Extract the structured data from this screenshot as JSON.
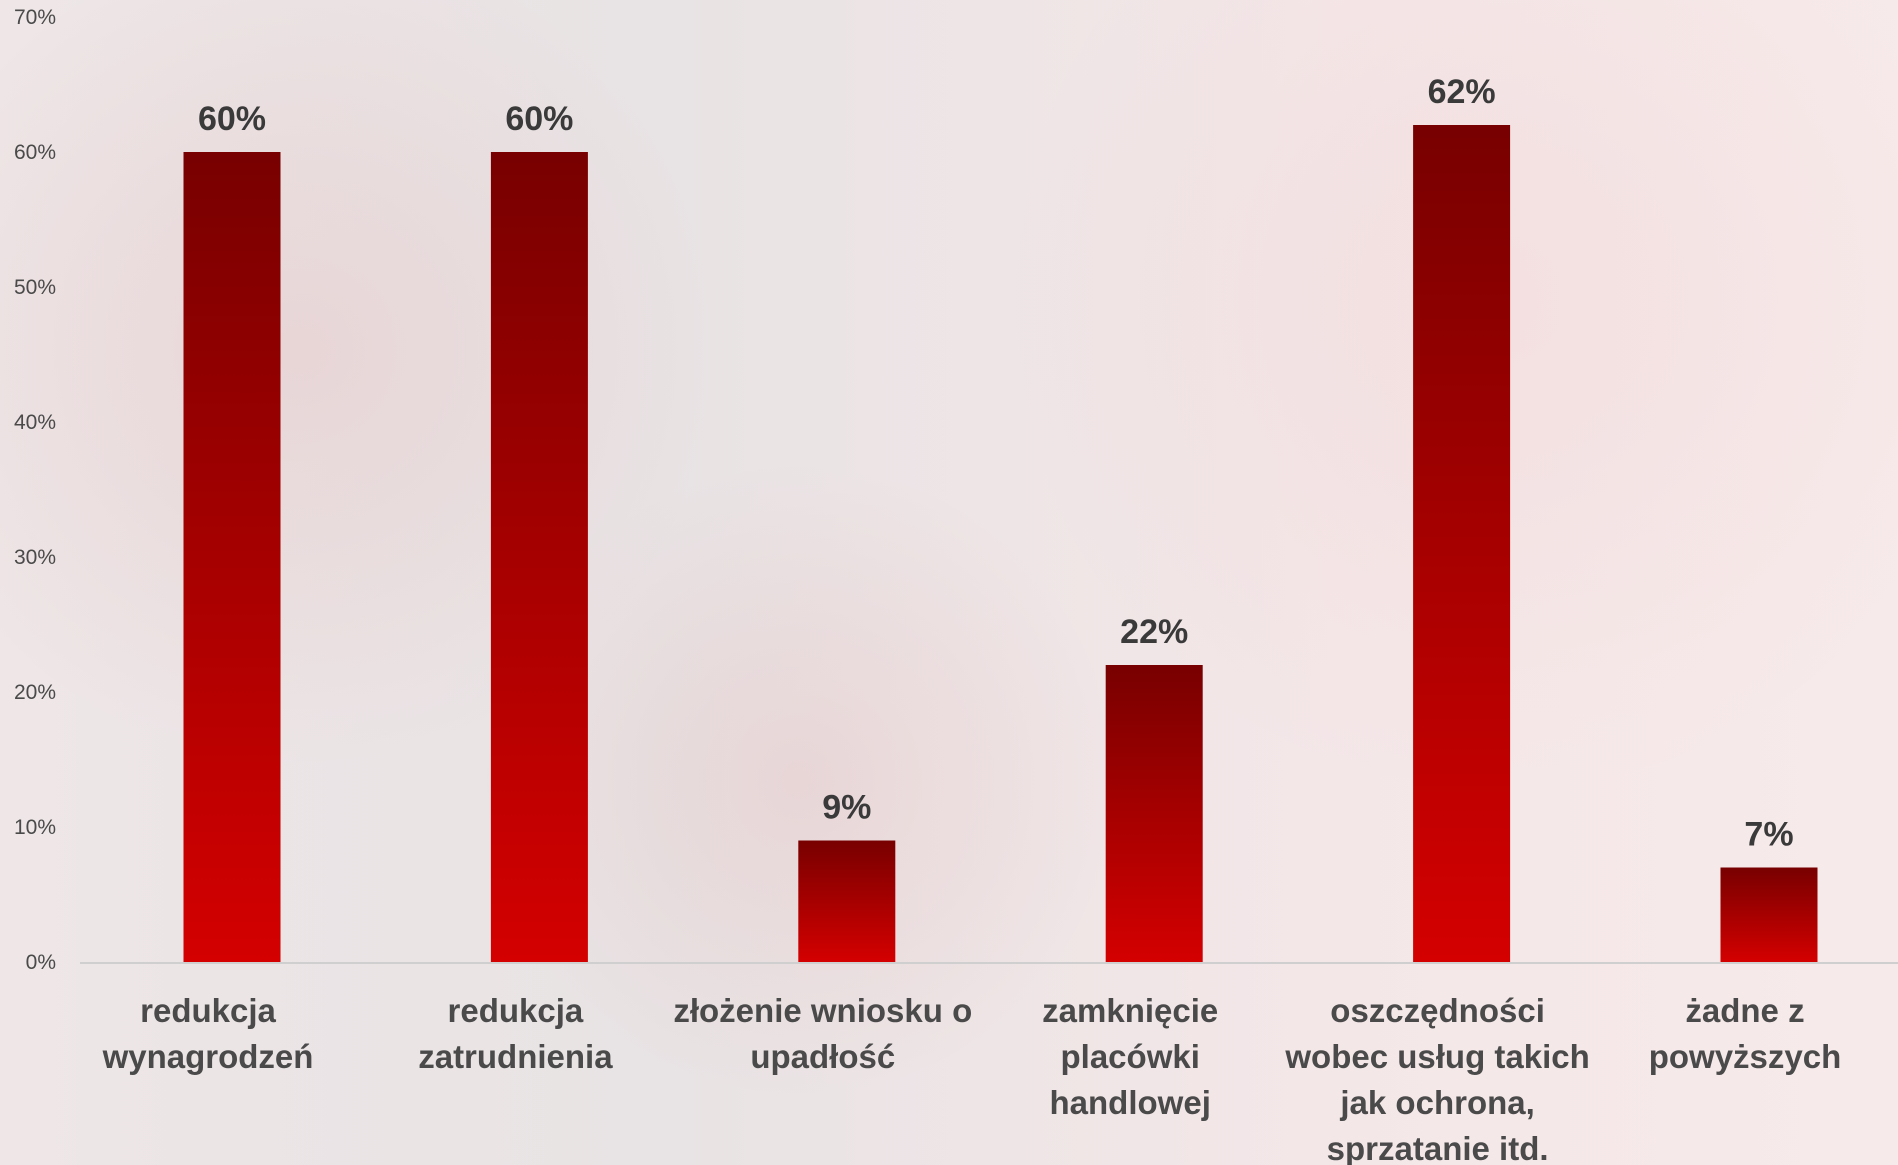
{
  "chart_data": {
    "type": "bar",
    "title": "",
    "xlabel": "",
    "ylabel": "",
    "categories": [
      [
        "redukcja",
        "wynagrodzeń"
      ],
      [
        "redukcja",
        "zatrudnienia"
      ],
      [
        "złożenie wniosku o",
        "upadłość"
      ],
      [
        "zamknięcie",
        "placówki",
        "handlowej"
      ],
      [
        "oszczędności",
        "wobec usług takich",
        "jak ochrona,",
        "sprzatanie itd."
      ],
      [
        "żadne z",
        "powyższych"
      ]
    ],
    "values": [
      60,
      60,
      9,
      22,
      62,
      7
    ],
    "data_labels": [
      "60%",
      "60%",
      "9%",
      "22%",
      "62%",
      "7%"
    ],
    "ylim": [
      0,
      70
    ],
    "yticks": [
      0,
      10,
      20,
      30,
      40,
      50,
      60,
      70
    ],
    "ytick_labels": [
      "0%",
      "10%",
      "20%",
      "30%",
      "40%",
      "50%",
      "60%",
      "70%"
    ],
    "grid": false,
    "legend": "none",
    "bar_color_top": "#780000",
    "bar_color_bottom": "#d40000"
  }
}
